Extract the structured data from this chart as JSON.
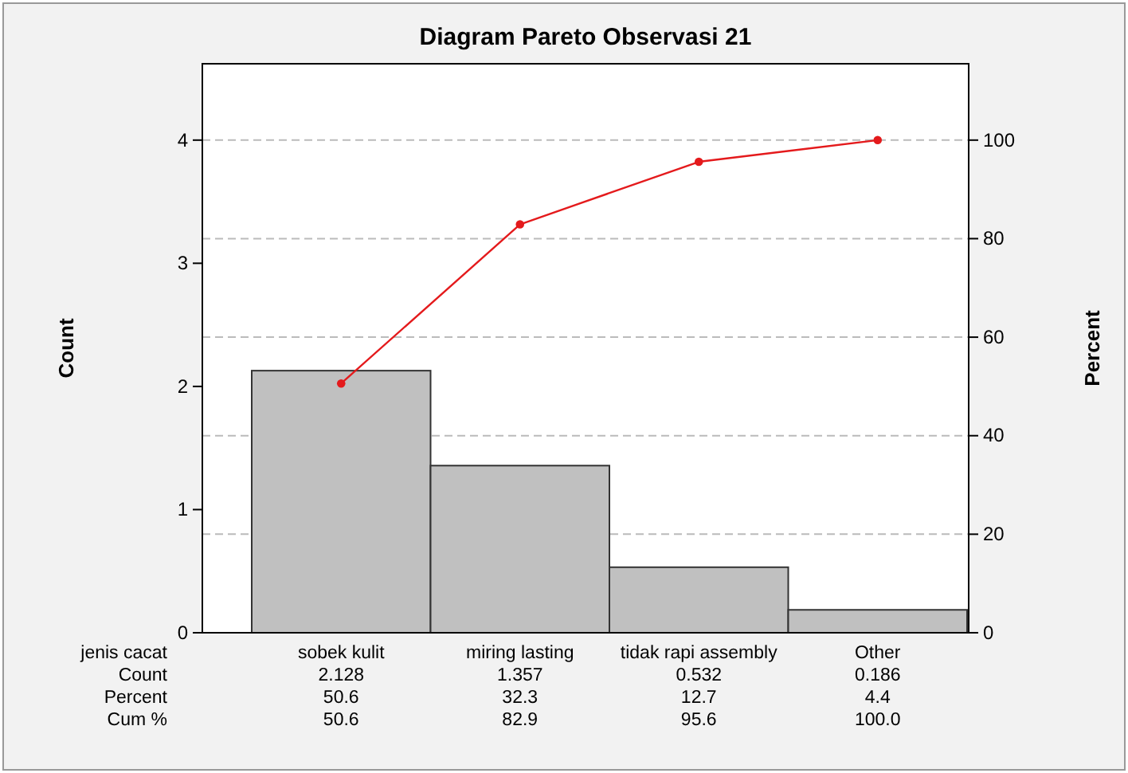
{
  "chart_data": {
    "type": "bar",
    "title": "Diagram Pareto Observasi 21",
    "xlabel": "jenis cacat",
    "ylabel": "Count",
    "y2label": "Percent",
    "categories": [
      "sobek kulit",
      "miring lasting",
      "tidak rapi assembly",
      "Other"
    ],
    "series": [
      {
        "color": "#c0c0c0",
        "values": [
          2.128,
          1.357,
          0.532,
          0.186
        ]
      },
      {
        "type": "line",
        "axis": "y2",
        "color": "#e41a1c",
        "values": [
          50.6,
          82.9,
          95.6,
          100
        ],
        "value_labels": [
          "50.6",
          "82.9",
          "95.6",
          "100.0"
        ]
      }
    ],
    "data_labels": true,
    "annotations": [
      "Count",
      "Percent",
      "Cum %",
      "50.6",
      "32.3",
      "12.7",
      "4.4"
    ],
    "ylim": [
      0,
      4.62
    ],
    "yticks": [
      0,
      1,
      2,
      3,
      4
    ],
    "y2lim": [
      0,
      115.5
    ],
    "y2ticks": [
      0,
      20,
      40,
      60,
      80,
      100
    ],
    "grid": "y",
    "marker": "circle",
    "line_style": "solid"
  }
}
